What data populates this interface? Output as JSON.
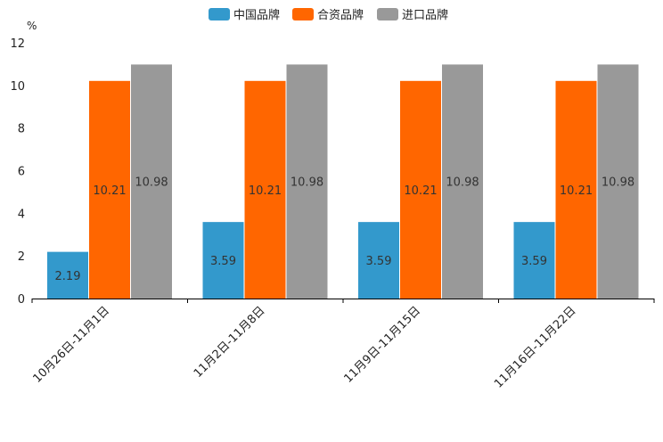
{
  "chart_data": {
    "type": "bar",
    "title": "",
    "ylabel": "%",
    "xlabel": "",
    "ylim": [
      0,
      12
    ],
    "yticks": [
      0,
      2,
      4,
      6,
      8,
      10,
      12
    ],
    "grid": false,
    "legend_position": "top-center",
    "categories": [
      "10月26日-11月1日",
      "11月2日-11月8日",
      "11月9日-11月15日",
      "11月16日-11月22日"
    ],
    "series": [
      {
        "name": "中国品牌",
        "color": "#3399cc",
        "values": [
          2.19,
          3.59,
          3.59,
          3.59
        ]
      },
      {
        "name": "合资品牌",
        "color": "#ff6600",
        "values": [
          10.21,
          10.21,
          10.21,
          10.21
        ]
      },
      {
        "name": "进口品牌",
        "color": "#999999",
        "values": [
          10.98,
          10.98,
          10.98,
          10.98
        ]
      }
    ]
  }
}
